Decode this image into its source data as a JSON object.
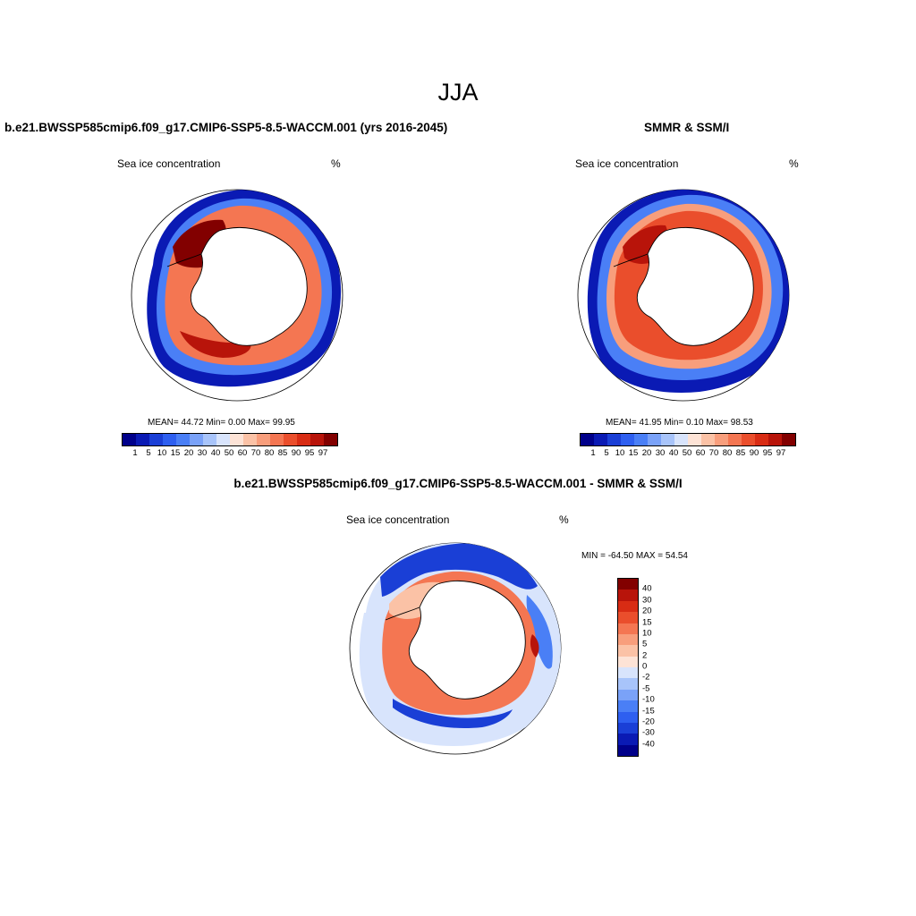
{
  "title": "JJA",
  "panels": [
    {
      "title": "b.e21.BWSSP585cmip6.f09_g17.CMIP6-SSP5-8.5-WACCM.001 (yrs 2016-2045)",
      "left_label": "Sea ice concentration",
      "right_label": "%",
      "stats": "MEAN=  44.72  Min=   0.00  Max=  99.95"
    },
    {
      "title": "SMMR & SSM/I",
      "left_label": "Sea ice concentration",
      "right_label": "%",
      "stats": "MEAN=  41.95  Min=   0.10  Max=  98.53"
    },
    {
      "title": "b.e21.BWSSP585cmip6.f09_g17.CMIP6-SSP5-8.5-WACCM.001 - SMMR & SSM/I",
      "left_label": "Sea ice concentration",
      "right_label": "%",
      "stats": "MIN = -64.50 MAX =  54.54"
    }
  ],
  "concentration_colorbar": {
    "ticks": [
      "1",
      "5",
      "10",
      "15",
      "20",
      "30",
      "40",
      "50",
      "60",
      "70",
      "80",
      "85",
      "90",
      "95",
      "97"
    ],
    "colors": [
      "#00008a",
      "#0a1ab4",
      "#1a3fd6",
      "#2e5ff0",
      "#4a7ff6",
      "#7aa2f8",
      "#a8c4fa",
      "#d8e4fc",
      "#fde3d6",
      "#fbc2a6",
      "#f89e7c",
      "#f47652",
      "#ea4e2c",
      "#d82c14",
      "#b8140a",
      "#820000"
    ]
  },
  "difference_colorbar": {
    "ticks": [
      "40",
      "30",
      "20",
      "15",
      "10",
      "5",
      "2",
      "0",
      "-2",
      "-5",
      "-10",
      "-15",
      "-20",
      "-30",
      "-40"
    ],
    "colors": [
      "#820000",
      "#b8140a",
      "#d82c14",
      "#ea4e2c",
      "#f47652",
      "#f89e7c",
      "#fbc2a6",
      "#fde3d6",
      "#d8e4fc",
      "#a8c4fa",
      "#7aa2f8",
      "#4a7ff6",
      "#2e5ff0",
      "#1a3fd6",
      "#0a1ab4",
      "#00008a"
    ]
  },
  "colors": {
    "land": "#ffffff",
    "coast": "#000000",
    "ocean": "#ffffff"
  }
}
